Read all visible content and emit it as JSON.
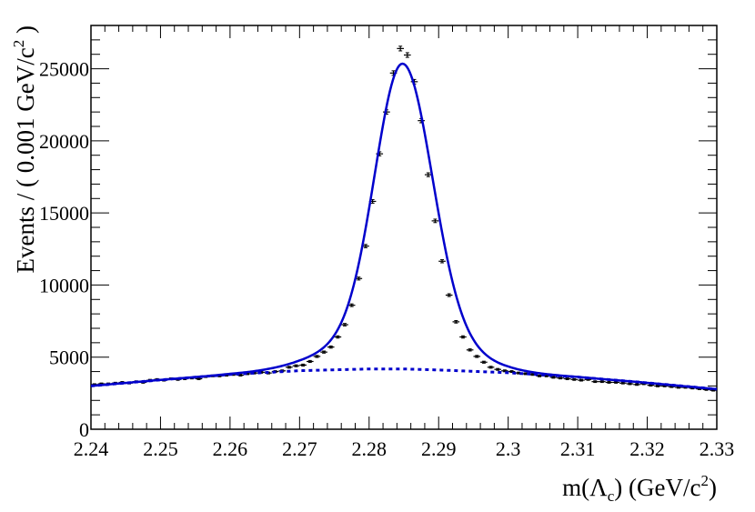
{
  "chart_data": {
    "type": "line",
    "xlabel": "m(Λc) (GeV/c2)",
    "ylabel": "Events / ( 0.001 GeV/c2 )",
    "xlim": [
      2.24,
      2.33
    ],
    "ylim": [
      0,
      28000
    ],
    "xticks": [
      "2.24",
      "2.25",
      "2.26",
      "2.27",
      "2.28",
      "2.29",
      "2.3",
      "2.31",
      "2.32",
      "2.33"
    ],
    "yticks": [
      "0",
      "5000",
      "10000",
      "15000",
      "20000",
      "25000"
    ],
    "grid": false,
    "legend": "none",
    "colors": {
      "data": "#000000",
      "fit": "#0000cc",
      "background": "#0000cc"
    },
    "series": [
      {
        "kind": "data-points",
        "x": [
          2.2405,
          2.2415,
          2.2425,
          2.2435,
          2.2445,
          2.2455,
          2.2465,
          2.2475,
          2.2485,
          2.2495,
          2.2505,
          2.2515,
          2.2525,
          2.2535,
          2.2545,
          2.2555,
          2.2565,
          2.2575,
          2.2585,
          2.2595,
          2.2605,
          2.2615,
          2.2625,
          2.2635,
          2.2645,
          2.2655,
          2.2665,
          2.2675,
          2.2685,
          2.2695,
          2.2705,
          2.2715,
          2.2725,
          2.2735,
          2.2745,
          2.2755,
          2.2765,
          2.2775,
          2.2785,
          2.2795,
          2.2805,
          2.2815,
          2.2825,
          2.2835,
          2.2845,
          2.2855,
          2.2865,
          2.2875,
          2.2885,
          2.2895,
          2.2905,
          2.2915,
          2.2925,
          2.2935,
          2.2945,
          2.2955,
          2.2965,
          2.2975,
          2.2985,
          2.2995,
          2.3005,
          2.3015,
          2.3025,
          2.3035,
          2.3045,
          2.3055,
          2.3065,
          2.3075,
          2.3085,
          2.3095,
          2.3105,
          2.3115,
          2.3125,
          2.3135,
          2.3145,
          2.3155,
          2.3165,
          2.3175,
          2.3185,
          2.3195,
          2.3205,
          2.3215,
          2.3225,
          2.3235,
          2.3245,
          2.3255,
          2.3265,
          2.3275,
          2.3285,
          2.3295
        ],
        "y": [
          3100,
          3150,
          3150,
          3200,
          3250,
          3200,
          3300,
          3250,
          3400,
          3450,
          3400,
          3500,
          3450,
          3500,
          3550,
          3500,
          3650,
          3700,
          3700,
          3750,
          3800,
          3750,
          3850,
          3900,
          3950,
          3900,
          4000,
          4050,
          4300,
          4400,
          4450,
          4700,
          5050,
          5350,
          5700,
          6400,
          7250,
          8600,
          10450,
          12700,
          15800,
          19100,
          22000,
          24700,
          26400,
          25950,
          24100,
          21400,
          17650,
          14450,
          11650,
          9300,
          7450,
          6400,
          5500,
          5050,
          4650,
          4300,
          4150,
          4050,
          4000,
          3900,
          3850,
          3800,
          3700,
          3700,
          3600,
          3550,
          3500,
          3450,
          3400,
          3450,
          3300,
          3300,
          3250,
          3250,
          3200,
          3150,
          3100,
          3150,
          3050,
          3000,
          3000,
          2950,
          2900,
          2900,
          2850,
          2800,
          2750,
          2700
        ]
      },
      {
        "kind": "total-fit",
        "style": "solid",
        "peak_x": 2.2848,
        "peak_y": 25350
      },
      {
        "kind": "background-fit",
        "style": "dashed",
        "points": [
          [
            2.24,
            3000
          ],
          [
            2.25,
            3420
          ],
          [
            2.26,
            3800
          ],
          [
            2.27,
            4060
          ],
          [
            2.28,
            4180
          ],
          [
            2.285,
            4180
          ],
          [
            2.29,
            4110
          ],
          [
            2.3,
            3920
          ],
          [
            2.31,
            3620
          ],
          [
            2.32,
            3220
          ],
          [
            2.33,
            2780
          ]
        ]
      }
    ]
  }
}
